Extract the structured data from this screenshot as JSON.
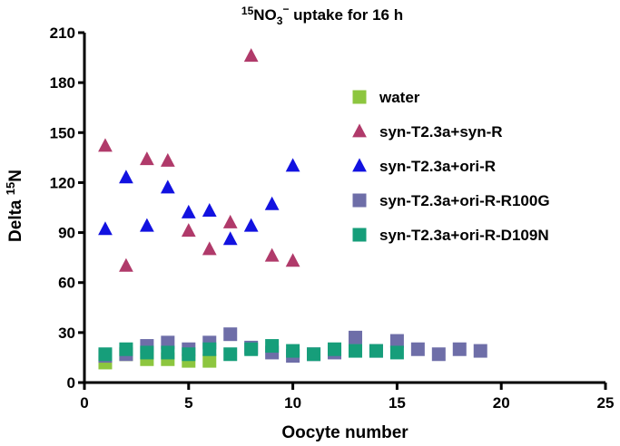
{
  "chart_data": {
    "type": "scatter",
    "title": {
      "superscript": "15",
      "formula": "NO",
      "subscript": "3",
      "charge": "−",
      "rest": " uptake for 16 h"
    },
    "xlabel": "Oocyte number",
    "ylabel": {
      "text": "Delta ",
      "superscript": "15",
      "suffix": "N"
    },
    "xlim": [
      0,
      25
    ],
    "ylim": [
      0,
      210
    ],
    "x_ticks": [
      0,
      5,
      10,
      15,
      20,
      25
    ],
    "y_ticks": [
      0,
      30,
      60,
      90,
      120,
      150,
      180,
      210
    ],
    "legend_position": "right",
    "series": [
      {
        "name": "water",
        "marker": "square",
        "color": "#8DC63F",
        "points": [
          [
            1,
            12
          ],
          [
            2,
            17
          ],
          [
            3,
            14
          ],
          [
            4,
            14
          ],
          [
            5,
            13
          ],
          [
            6,
            13
          ]
        ]
      },
      {
        "name": "syn-T2.3a+syn-R",
        "marker": "triangle",
        "color": "#B03A6A",
        "points": [
          [
            1,
            142
          ],
          [
            2,
            70
          ],
          [
            3,
            134
          ],
          [
            4,
            133
          ],
          [
            5,
            91
          ],
          [
            6,
            80
          ],
          [
            7,
            96
          ],
          [
            8,
            196
          ],
          [
            9,
            76
          ],
          [
            10,
            73
          ]
        ]
      },
      {
        "name": "syn-T2.3a+ori-R",
        "marker": "triangle",
        "color": "#1212E0",
        "points": [
          [
            1,
            92
          ],
          [
            2,
            123
          ],
          [
            3,
            94
          ],
          [
            4,
            117
          ],
          [
            5,
            102
          ],
          [
            6,
            103
          ],
          [
            7,
            86
          ],
          [
            8,
            94
          ],
          [
            9,
            107
          ],
          [
            10,
            130
          ]
        ]
      },
      {
        "name": "syn-T2.3a+ori-R-R100G",
        "marker": "square",
        "color": "#6E6EA8",
        "points": [
          [
            1,
            16
          ],
          [
            2,
            17
          ],
          [
            3,
            22
          ],
          [
            4,
            24
          ],
          [
            5,
            20
          ],
          [
            6,
            24
          ],
          [
            7,
            29
          ],
          [
            8,
            21
          ],
          [
            9,
            18
          ],
          [
            10,
            16
          ],
          [
            11,
            17
          ],
          [
            12,
            18
          ],
          [
            13,
            27
          ],
          [
            14,
            19
          ],
          [
            15,
            25
          ],
          [
            16,
            20
          ],
          [
            17,
            17
          ],
          [
            18,
            20
          ],
          [
            19,
            19
          ]
        ]
      },
      {
        "name": "syn-T2.3a+ori-R-D109N",
        "marker": "square",
        "color": "#169E7A",
        "points": [
          [
            1,
            17
          ],
          [
            2,
            20
          ],
          [
            3,
            18
          ],
          [
            4,
            18
          ],
          [
            5,
            17
          ],
          [
            6,
            20
          ],
          [
            7,
            17
          ],
          [
            8,
            20
          ],
          [
            9,
            22
          ],
          [
            10,
            19
          ],
          [
            11,
            17
          ],
          [
            12,
            20
          ],
          [
            13,
            19
          ],
          [
            14,
            19
          ],
          [
            15,
            18
          ]
        ]
      }
    ]
  }
}
